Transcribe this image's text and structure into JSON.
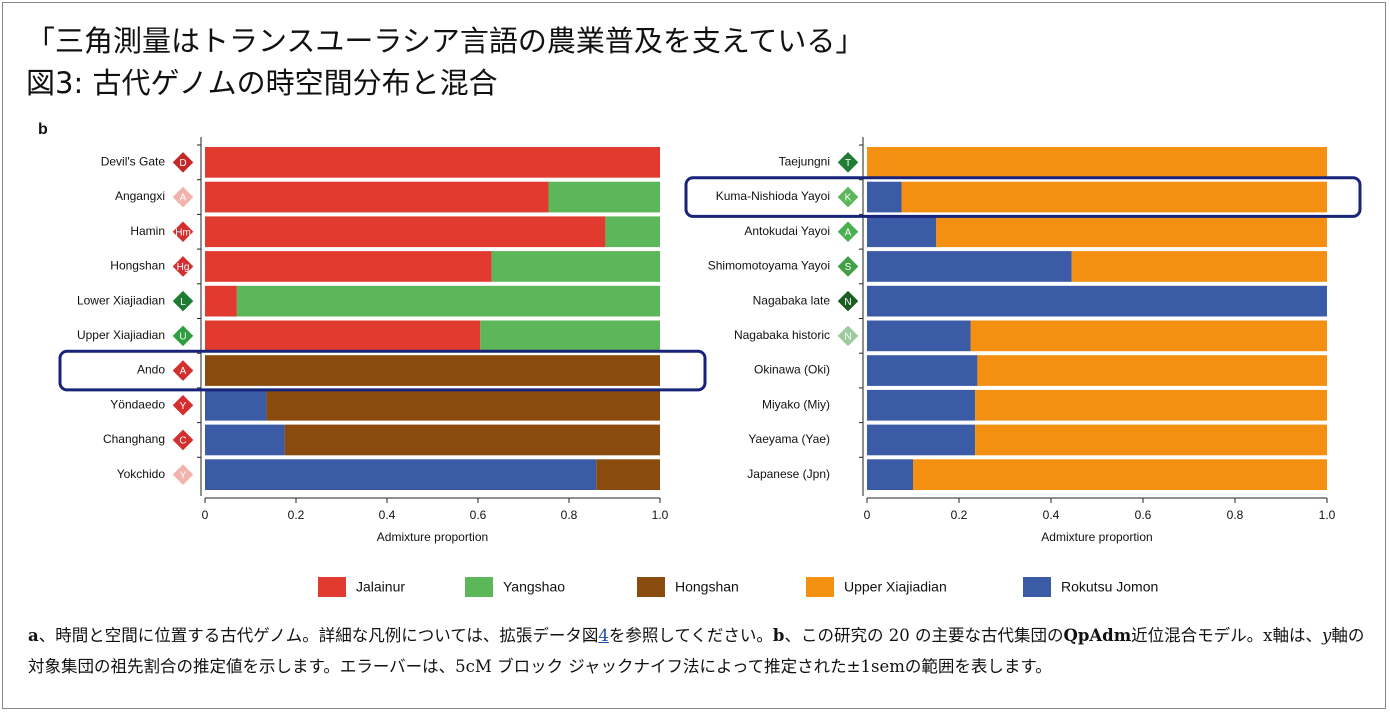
{
  "header": {
    "title": "「三角測量はトランスユーラシア言語の農業普及を支えている」",
    "subtitle": "図3: 古代ゲノムの時空間分布と混合"
  },
  "panel_label": "b",
  "chart_data": [
    {
      "type": "stacked_barh",
      "categories": [
        "Devil's Gate",
        "Angangxi",
        "Hamin",
        "Hongshan",
        "Lower Xiajiadian",
        "Upper Xiajiadian",
        "Ando",
        "Yöndaedo",
        "Changhang",
        "Yokchido"
      ],
      "markers": [
        "D",
        "A",
        "Hm",
        "Hg",
        "L",
        "U",
        "A",
        "Y",
        "C",
        "Y"
      ],
      "marker_colors": [
        "#c62828",
        "#f2b3ad",
        "#d32f2f",
        "#d32f2f",
        "#1e7d32",
        "#2e9e3e",
        "#d32f2f",
        "#d32f2f",
        "#d32f2f",
        "#f2b3ad"
      ],
      "series": [
        {
          "name": "Rokutsu Jomon",
          "color": "#3b5ba7",
          "values": [
            0,
            0,
            0,
            0,
            0,
            0,
            0,
            0.135,
            0.175,
            0.86
          ]
        },
        {
          "name": "Jalainur",
          "color": "#e13b30",
          "values": [
            1.0,
            0.755,
            0.88,
            0.63,
            0.07,
            0.605,
            0,
            0,
            0,
            0
          ]
        },
        {
          "name": "Yangshao",
          "color": "#5cb65a",
          "values": [
            0,
            0.245,
            0.12,
            0.37,
            0.93,
            0.395,
            0,
            0,
            0,
            0
          ]
        },
        {
          "name": "Hongshan",
          "color": "#8a4b0f",
          "values": [
            0,
            0,
            0,
            0,
            0,
            0,
            1.0,
            0.865,
            0.825,
            0.14
          ]
        }
      ],
      "xlim": [
        0,
        1
      ],
      "xticks": [
        0,
        0.2,
        0.4,
        0.6,
        0.8,
        {
          "value": 1,
          "label": "1.0"
        }
      ],
      "xlabel": "Admixture proportion",
      "highlight": [
        6
      ]
    },
    {
      "type": "stacked_barh",
      "categories": [
        "Taejungni",
        "Kuma-Nishioda Yayoi",
        "Antokudai Yayoi",
        "Shimomotoyama Yayoi",
        "Nagabaka late",
        "Nagabaka historic",
        "Okinawa (Oki)",
        "Miyako (Miy)",
        "Yaeyama (Yae)",
        "Japanese (Jpn)"
      ],
      "markers": [
        "T",
        "K",
        "A",
        "S",
        "N",
        "N",
        null,
        null,
        null,
        null
      ],
      "marker_colors": [
        "#1e7d32",
        "#5cb65a",
        "#4caf50",
        "#43a047",
        "#1b5e20",
        "#9ccc9c",
        null,
        null,
        null,
        null
      ],
      "series": [
        {
          "name": "Rokutsu Jomon",
          "color": "#3b5ba7",
          "values": [
            0,
            0.075,
            0.15,
            0.445,
            1.0,
            0.225,
            0.24,
            0.235,
            0.235,
            0.1
          ]
        },
        {
          "name": "Upper Xiajiadian",
          "color": "#f39012",
          "values": [
            1.0,
            0.925,
            0.85,
            0.555,
            0,
            0.775,
            0.76,
            0.765,
            0.765,
            0.9
          ]
        }
      ],
      "xlim": [
        0,
        1
      ],
      "xticks": [
        0,
        0.2,
        0.4,
        0.6,
        0.8,
        {
          "value": 1,
          "label": "1.0"
        }
      ],
      "xlabel": "Admixture proportion",
      "highlight": [
        1
      ]
    }
  ],
  "caption": [
    {
      "text": "a",
      "bold": true
    },
    {
      "text": "、時間と空間に位置する古代ゲノム。詳細な凡例については、拡張データ図"
    },
    {
      "text": "4",
      "link": true
    },
    {
      "text": "を参照してください。"
    },
    {
      "text": "b",
      "bold": true
    },
    {
      "text": "、この研究の 20 の主要な古代集団の"
    },
    {
      "text": "QpAdm",
      "bold": true
    },
    {
      "text": "近位混合モデル。x軸は、"
    },
    {
      "text": "y",
      "italic": true
    },
    {
      "text": "軸の対象集団の祖先割合の推定値を示します。エラーバーは、5cM ブロック ジャックナイフ法によって推定された±1semの範囲を表します。"
    }
  ]
}
